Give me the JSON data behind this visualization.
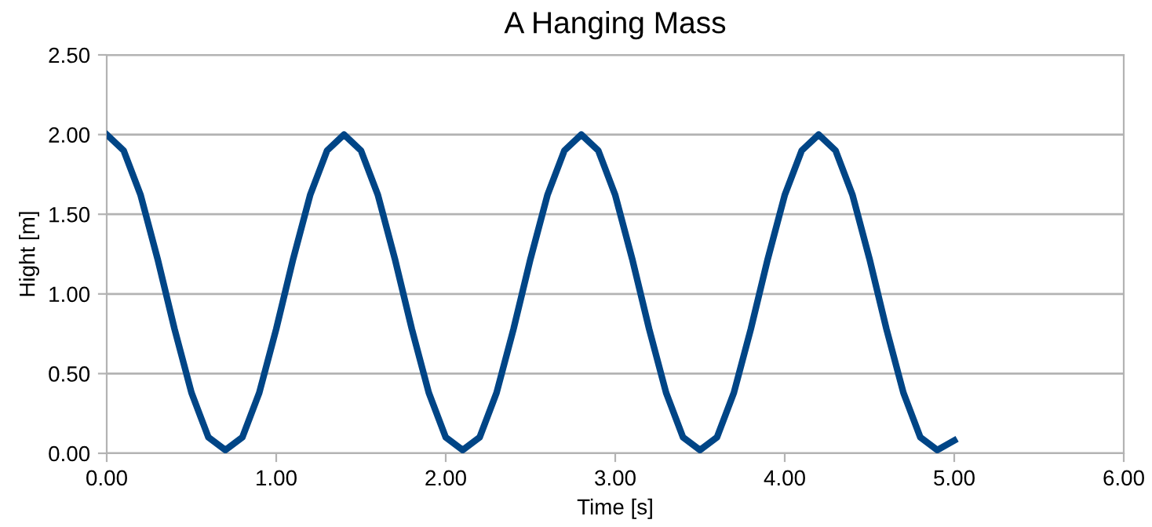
{
  "chart_data": {
    "type": "line",
    "title": "A Hanging Mass",
    "xlabel": "Time [s]",
    "ylabel": "Hight [m]",
    "xlim": [
      0,
      6
    ],
    "ylim": [
      0,
      2.5
    ],
    "xticks": [
      {
        "value": 0,
        "label": "0.00"
      },
      {
        "value": 1,
        "label": "1.00"
      },
      {
        "value": 2,
        "label": "2.00"
      },
      {
        "value": 3,
        "label": "3.00"
      },
      {
        "value": 4,
        "label": "4.00"
      },
      {
        "value": 5,
        "label": "5.00"
      },
      {
        "value": 6,
        "label": "6.00"
      }
    ],
    "yticks": [
      {
        "value": 0,
        "label": "0.00"
      },
      {
        "value": 0.5,
        "label": "0.50"
      },
      {
        "value": 1,
        "label": "1.00"
      },
      {
        "value": 1.5,
        "label": "1.50"
      },
      {
        "value": 2,
        "label": "2.00"
      },
      {
        "value": 2.5,
        "label": "2.50"
      }
    ],
    "grid": "y",
    "legend": false,
    "marker": "none",
    "line_style": "solid",
    "x": [
      0,
      0.1,
      0.2,
      0.3,
      0.4,
      0.5,
      0.6,
      0.7,
      0.8,
      0.9,
      1.0,
      1.1,
      1.2,
      1.3,
      1.4,
      1.5,
      1.6,
      1.7,
      1.8,
      1.9,
      2.0,
      2.1,
      2.2,
      2.3,
      2.4,
      2.5,
      2.6,
      2.7,
      2.8,
      2.9,
      3.0,
      3.1,
      3.2,
      3.3,
      3.4,
      3.5,
      3.6,
      3.7,
      3.8,
      3.9,
      4.0,
      4.1,
      4.2,
      4.3,
      4.4,
      4.5,
      4.6,
      4.7,
      4.8,
      4.9,
      5.0
    ],
    "series": [
      {
        "color": "#004586",
        "values": [
          2.0,
          1.9,
          1.62,
          1.22,
          0.78,
          0.38,
          0.1,
          0.02,
          0.1,
          0.38,
          0.78,
          1.22,
          1.62,
          1.9,
          2.0,
          1.9,
          1.62,
          1.22,
          0.78,
          0.38,
          0.1,
          0.02,
          0.1,
          0.38,
          0.78,
          1.22,
          1.62,
          1.9,
          2.0,
          1.9,
          1.62,
          1.22,
          0.78,
          0.38,
          0.1,
          0.02,
          0.1,
          0.38,
          0.78,
          1.22,
          1.62,
          1.9,
          2.0,
          1.9,
          1.62,
          1.22,
          0.78,
          0.38,
          0.1,
          0.02,
          0.08
        ]
      }
    ]
  }
}
